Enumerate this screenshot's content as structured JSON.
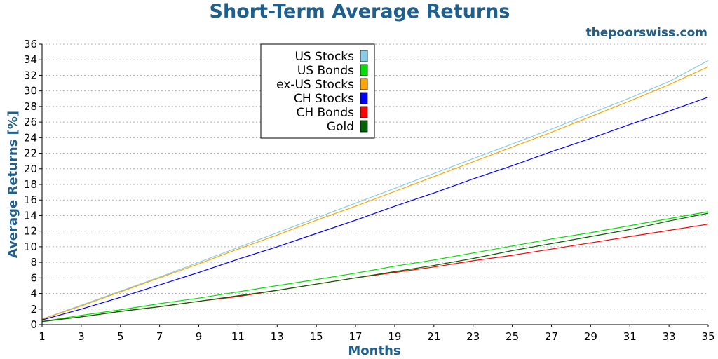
{
  "chart_data": {
    "type": "line",
    "title": "Short-Term Average Returns",
    "watermark": "thepoorswiss.com",
    "xlabel": "Months",
    "ylabel": "Average Returns [%]",
    "xlim": [
      1,
      35
    ],
    "ylim": [
      0,
      36
    ],
    "x_ticks": [
      1,
      3,
      5,
      7,
      9,
      11,
      13,
      15,
      17,
      19,
      21,
      23,
      25,
      27,
      29,
      31,
      33,
      35
    ],
    "y_ticks": [
      0,
      2,
      4,
      6,
      8,
      10,
      12,
      14,
      16,
      18,
      20,
      22,
      24,
      26,
      28,
      30,
      32,
      34,
      36
    ],
    "grid": true,
    "legend_position": "top-center",
    "x": [
      1,
      3,
      5,
      7,
      9,
      11,
      13,
      15,
      17,
      19,
      21,
      23,
      25,
      27,
      29,
      31,
      33,
      35
    ],
    "series": [
      {
        "name": "US Stocks",
        "color": "#87ceeb",
        "values": [
          0.7,
          2.5,
          4.3,
          6.1,
          8.0,
          9.9,
          11.8,
          13.7,
          15.6,
          17.5,
          19.4,
          21.3,
          23.2,
          25.1,
          27.1,
          29.1,
          31.2,
          33.9
        ]
      },
      {
        "name": "US Bonds",
        "color": "#00e000",
        "values": [
          0.4,
          1.2,
          1.9,
          2.7,
          3.4,
          4.2,
          5.0,
          5.8,
          6.6,
          7.5,
          8.3,
          9.2,
          10.1,
          11.0,
          11.8,
          12.7,
          13.6,
          14.5
        ]
      },
      {
        "name": "ex-US Stocks",
        "color": "#ffa500",
        "values": [
          0.7,
          2.4,
          4.2,
          6.0,
          7.8,
          9.7,
          11.5,
          13.4,
          15.2,
          17.1,
          19.0,
          20.9,
          22.8,
          24.7,
          26.7,
          28.7,
          30.8,
          33.1
        ]
      },
      {
        "name": "CH Stocks",
        "color": "#0000ff",
        "values": [
          0.6,
          2.0,
          3.5,
          5.1,
          6.7,
          8.4,
          10.0,
          11.7,
          13.4,
          15.2,
          16.9,
          18.7,
          20.4,
          22.2,
          23.9,
          25.7,
          27.4,
          29.2
        ]
      },
      {
        "name": "CH Bonds",
        "color": "#ff0000",
        "values": [
          0.4,
          1.0,
          1.7,
          2.3,
          3.0,
          3.6,
          4.4,
          5.2,
          6.0,
          6.7,
          7.4,
          8.2,
          8.9,
          9.7,
          10.5,
          11.3,
          12.1,
          12.9
        ]
      },
      {
        "name": "Gold",
        "color": "#006400",
        "values": [
          0.4,
          1.0,
          1.7,
          2.3,
          3.0,
          3.7,
          4.4,
          5.2,
          6.0,
          6.8,
          7.6,
          8.5,
          9.5,
          10.4,
          11.3,
          12.2,
          13.3,
          14.3
        ]
      }
    ]
  },
  "colors": {
    "title": "#1f5f8b",
    "grid": "#b0b0b0",
    "axis": "#000000"
  }
}
